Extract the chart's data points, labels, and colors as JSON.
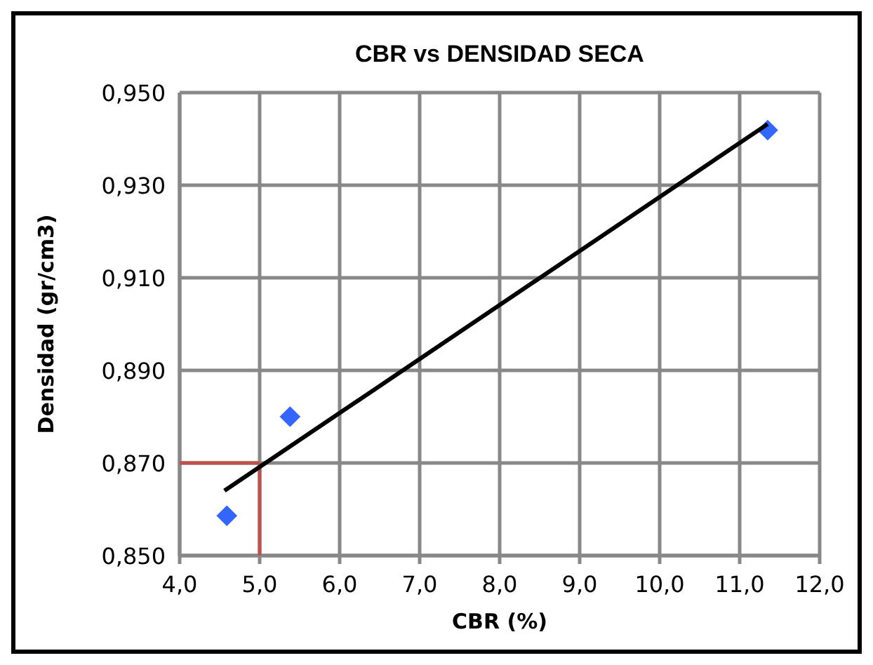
{
  "chart_data": {
    "type": "scatter",
    "title": "CBR vs DENSIDAD  SECA",
    "xlabel": "CBR (%)",
    "ylabel": "Densidad  (gr/cm3)",
    "x": [
      4.59,
      5.38,
      11.35
    ],
    "series": [
      {
        "color": "#3366ff",
        "values": [
          0.8586,
          0.88,
          0.9419
        ],
        "marker": "diamond"
      },
      {
        "type": "line",
        "color": "#000000",
        "x": [
          4.56,
          11.35
        ],
        "values": [
          0.864,
          0.9432
        ],
        "marker": "none"
      }
    ],
    "xlim": [
      4,
      12
    ],
    "ylim": [
      0.85,
      0.95
    ],
    "xticks": [
      {
        "value": 4,
        "label": "4,0"
      },
      {
        "value": 5,
        "label": "5,0"
      },
      {
        "value": 6,
        "label": "6,0"
      },
      {
        "value": 7,
        "label": "7,0"
      },
      {
        "value": 8,
        "label": "8,0"
      },
      {
        "value": 9,
        "label": "9,0"
      },
      {
        "value": 10,
        "label": "10,0"
      },
      {
        "value": 11,
        "label": "11,0"
      },
      {
        "value": 12,
        "label": "12,0"
      }
    ],
    "yticks": [
      {
        "value": 0.85,
        "label": "0,850"
      },
      {
        "value": 0.87,
        "label": "0,870"
      },
      {
        "value": 0.89,
        "label": "0,890"
      },
      {
        "value": 0.91,
        "label": "0,910"
      },
      {
        "value": 0.93,
        "label": "0,930"
      },
      {
        "value": 0.95,
        "label": "0,950"
      }
    ],
    "grid": true,
    "ref_lines": [
      {
        "axis": "x",
        "value": 5,
        "label": null,
        "color": "#c0504d"
      },
      {
        "axis": "y",
        "value": 0.87,
        "label": null,
        "color": "#c0504d"
      }
    ]
  }
}
